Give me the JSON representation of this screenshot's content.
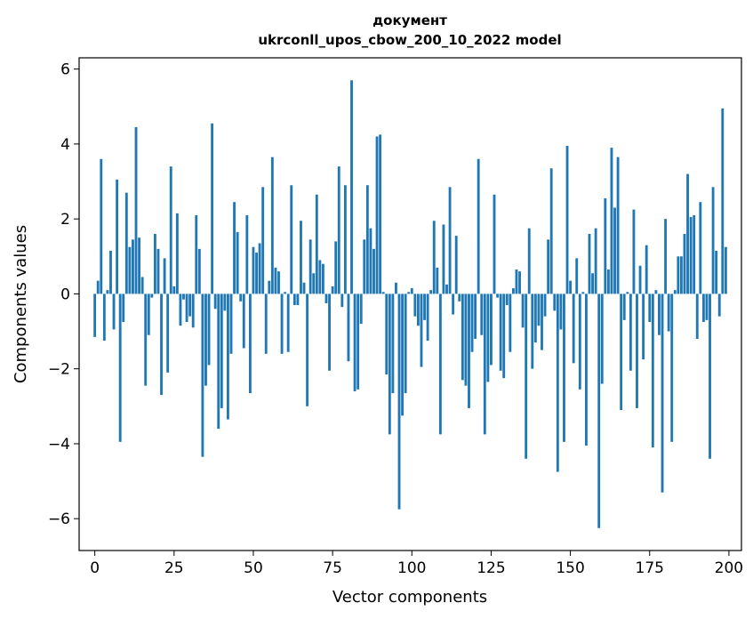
{
  "chart_data": {
    "type": "bar",
    "title": "документ",
    "subtitle": "ukrconll_upos_cbow_200_10_2022 model",
    "xlabel": "Vector components",
    "ylabel": "Components values",
    "xlim": [
      -4.95,
      203.95
    ],
    "ylim": [
      -6.85,
      6.3
    ],
    "xticks": [
      0,
      25,
      50,
      75,
      100,
      125,
      150,
      175,
      200
    ],
    "yticks": [
      -6,
      -4,
      -2,
      0,
      2,
      4,
      6
    ],
    "xtick_labels": [
      "0",
      "25",
      "50",
      "75",
      "100",
      "125",
      "150",
      "175",
      "200"
    ],
    "ytick_labels": [
      "−6",
      "−4",
      "−2",
      "0",
      "2",
      "4",
      "6"
    ],
    "grid": false,
    "series_color": "#1f77b4",
    "x": [
      0,
      1,
      2,
      3,
      4,
      5,
      6,
      7,
      8,
      9,
      10,
      11,
      12,
      13,
      14,
      15,
      16,
      17,
      18,
      19,
      20,
      21,
      22,
      23,
      24,
      25,
      26,
      27,
      28,
      29,
      30,
      31,
      32,
      33,
      34,
      35,
      36,
      37,
      38,
      39,
      40,
      41,
      42,
      43,
      44,
      45,
      46,
      47,
      48,
      49,
      50,
      51,
      52,
      53,
      54,
      55,
      56,
      57,
      58,
      59,
      60,
      61,
      62,
      63,
      64,
      65,
      66,
      67,
      68,
      69,
      70,
      71,
      72,
      73,
      74,
      75,
      76,
      77,
      78,
      79,
      80,
      81,
      82,
      83,
      84,
      85,
      86,
      87,
      88,
      89,
      90,
      91,
      92,
      93,
      94,
      95,
      96,
      97,
      98,
      99,
      100,
      101,
      102,
      103,
      104,
      105,
      106,
      107,
      108,
      109,
      110,
      111,
      112,
      113,
      114,
      115,
      116,
      117,
      118,
      119,
      120,
      121,
      122,
      123,
      124,
      125,
      126,
      127,
      128,
      129,
      130,
      131,
      132,
      133,
      134,
      135,
      136,
      137,
      138,
      139,
      140,
      141,
      142,
      143,
      144,
      145,
      146,
      147,
      148,
      149,
      150,
      151,
      152,
      153,
      154,
      155,
      156,
      157,
      158,
      159,
      160,
      161,
      162,
      163,
      164,
      165,
      166,
      167,
      168,
      169,
      170,
      171,
      172,
      173,
      174,
      175,
      176,
      177,
      178,
      179,
      180,
      181,
      182,
      183,
      184,
      185,
      186,
      187,
      188,
      189,
      190,
      191,
      192,
      193,
      194,
      195,
      196,
      197,
      198,
      199
    ],
    "values": [
      -1.15,
      0.35,
      3.6,
      -1.25,
      0.1,
      1.15,
      -0.95,
      3.05,
      -3.95,
      -0.75,
      2.7,
      1.25,
      1.45,
      4.45,
      1.5,
      0.45,
      -2.45,
      -1.1,
      -0.1,
      1.6,
      1.2,
      -2.7,
      0.95,
      -2.1,
      3.4,
      0.2,
      2.15,
      -0.85,
      -0.15,
      -0.75,
      -0.6,
      -0.9,
      2.1,
      1.2,
      -4.35,
      -2.45,
      -1.9,
      4.55,
      -0.4,
      -3.6,
      -3.05,
      -0.45,
      -3.35,
      -1.6,
      2.45,
      1.65,
      -0.2,
      -1.45,
      2.1,
      -2.65,
      1.25,
      1.1,
      1.35,
      2.85,
      -1.6,
      0.35,
      3.65,
      0.7,
      0.6,
      -1.6,
      0.05,
      -1.55,
      2.9,
      -0.3,
      -0.3,
      1.95,
      0.3,
      -3,
      1.45,
      0.55,
      2.65,
      0.9,
      0.8,
      -0.25,
      -2.05,
      0.2,
      1.4,
      3.4,
      -0.35,
      2.9,
      -1.8,
      5.7,
      -2.6,
      -2.55,
      -0.8,
      1.45,
      2.9,
      1.75,
      1.2,
      4.2,
      4.25,
      0.05,
      -2.15,
      -3.75,
      -2.65,
      0.3,
      -5.75,
      -3.25,
      -2.65,
      0.05,
      0.15,
      -0.6,
      -0.85,
      -1.95,
      -0.7,
      -1.25,
      0.1,
      1.95,
      0.7,
      -3.75,
      1.85,
      0.25,
      2.85,
      -0.55,
      1.55,
      -0.2,
      -2.3,
      -2.45,
      -3.05,
      -1.55,
      -1.2,
      3.6,
      -1.1,
      -3.75,
      -2.35,
      -1.9,
      2.65,
      -0.1,
      -2.05,
      -2.25,
      -0.3,
      -1.55,
      0.15,
      0.65,
      0.6,
      -0.9,
      -4.4,
      1.75,
      -2,
      -1.3,
      -0.85,
      -1.5,
      -0.6,
      1.45,
      3.35,
      -0.45,
      -4.75,
      -0.95,
      -3.95,
      3.95,
      0.35,
      -1.85,
      0.95,
      -2.55,
      0.05,
      -4.05,
      1.6,
      0.55,
      1.75,
      -6.25,
      -2.4,
      2.55,
      0.65,
      3.9,
      2.3,
      3.65,
      -3.1,
      -0.7,
      0.05,
      -2.05,
      2.25,
      -3.05,
      0.75,
      -1.75,
      1.3,
      -0.75,
      -4.1,
      0.1,
      -1.1,
      -5.3,
      2,
      -1,
      -3.95,
      0.1,
      1,
      1,
      1.6,
      3.2,
      2.05,
      2.1,
      -1.2,
      2.45,
      -0.75,
      -0.7,
      -4.4,
      2.85,
      1.15,
      -0.6,
      4.95,
      1.25
    ]
  }
}
